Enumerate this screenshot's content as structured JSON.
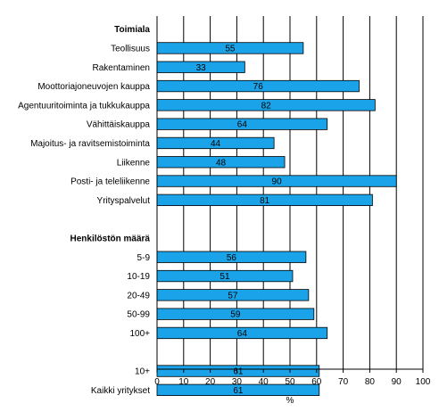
{
  "chart_data": {
    "type": "bar",
    "orientation": "horizontal",
    "xlabel": "%",
    "xlim": [
      0,
      100
    ],
    "xticks": [
      0,
      10,
      20,
      30,
      40,
      50,
      60,
      70,
      80,
      90,
      100
    ],
    "grid": "vertical lines",
    "bar_color": "#1aa3e8",
    "groups": [
      {
        "title": "Toimiala",
        "categories": [
          "Teollisuus",
          "Rakentaminen",
          "Moottoriajoneuvojen kauppa",
          "Agentuuritoiminta ja tukkukauppa",
          "Vähittäiskauppa",
          "Majoitus- ja ravitsemistoiminta",
          "Liikenne",
          "Posti- ja teleliikenne",
          "Yrityspalvelut"
        ],
        "values": [
          55,
          33,
          76,
          82,
          64,
          44,
          48,
          90,
          81
        ]
      },
      {
        "title": "Henkilöstön määrä",
        "categories": [
          "5-9",
          "10-19",
          "20-49",
          "50-99",
          "100+"
        ],
        "values": [
          56,
          51,
          57,
          59,
          64
        ]
      },
      {
        "title": "",
        "categories": [
          "10+",
          "Kaikki yritykset"
        ],
        "values": [
          61,
          61
        ]
      }
    ]
  }
}
